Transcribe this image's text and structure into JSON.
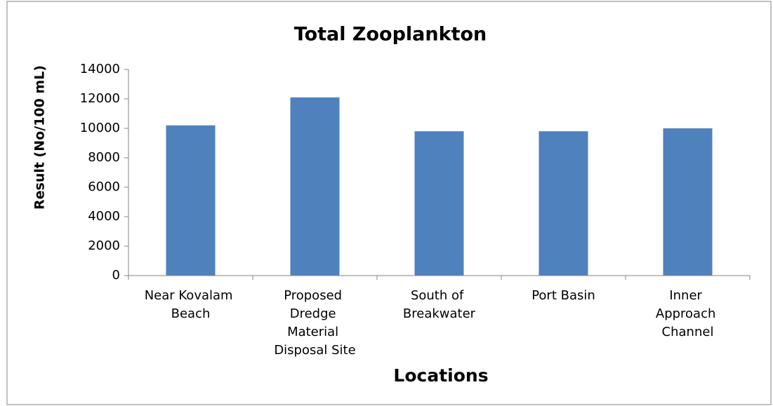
{
  "chart_data": {
    "type": "bar",
    "title": "Total Zooplankton",
    "x_label": "Locations",
    "y_label": "Result (No/100 mL)",
    "categories": [
      "Near Kovalam Beach",
      "Proposed Dredge Material Disposal Site",
      "South of Breakwater",
      "Port Basin",
      "Inner Approach Channel"
    ],
    "values": [
      10200,
      12100,
      9800,
      9800,
      10000
    ],
    "color": "#4f81bd",
    "ylim": [
      0,
      14000
    ],
    "yticks": [
      0,
      2000,
      4000,
      6000,
      8000,
      10000,
      12000,
      14000
    ],
    "grid": false
  }
}
